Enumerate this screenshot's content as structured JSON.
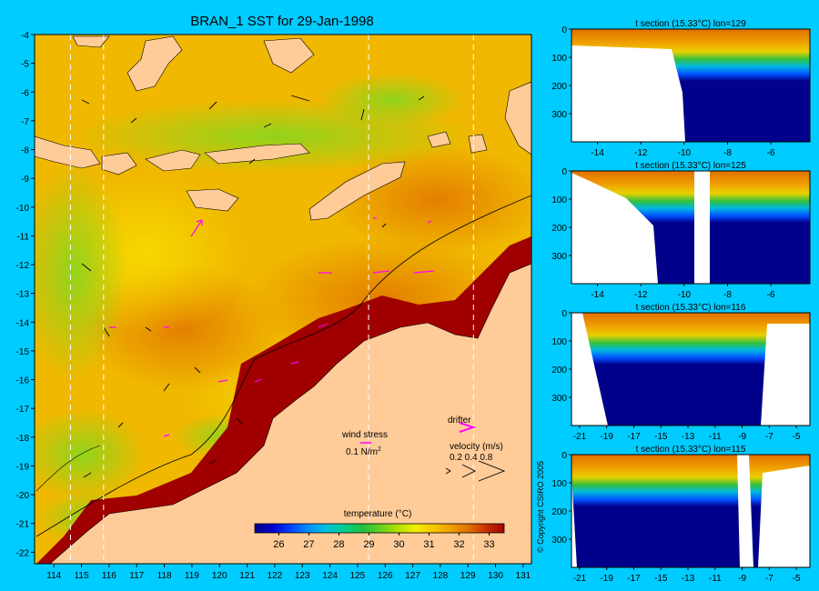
{
  "map": {
    "title": "BRAN_1 SST for 29-Jan-1998",
    "x_ticks": [
      "114",
      "115",
      "116",
      "117",
      "118",
      "119",
      "120",
      "121",
      "122",
      "123",
      "124",
      "125",
      "126",
      "127",
      "128",
      "129",
      "130",
      "131"
    ],
    "y_ticks": [
      "-4",
      "-5",
      "-6",
      "-7",
      "-8",
      "-9",
      "-10",
      "-11",
      "-12",
      "-13",
      "-14",
      "-15",
      "-16",
      "-17",
      "-18",
      "-19",
      "-20",
      "-21",
      "-22"
    ],
    "lon_range": [
      113.3,
      131.3
    ],
    "lat_range": [
      -22.4,
      -4
    ],
    "section_lines_lon": [
      114.6,
      115.8,
      125.4,
      129.2
    ]
  },
  "legend": {
    "wind_stress_label": "wind stress",
    "wind_stress_value": "0.1 N/m",
    "wind_stress_sup": "2",
    "drifter_label": "drifter",
    "velocity_label": "velocity (m/s)",
    "velocity_values": "0.2 0.4 0.8"
  },
  "colorbar": {
    "title": "temperature (°C)",
    "ticks": [
      "26",
      "27",
      "28",
      "29",
      "30",
      "31",
      "32",
      "33"
    ],
    "range": [
      25.2,
      33.5
    ],
    "colors": [
      "#00008b",
      "#0000cd",
      "#0040ff",
      "#0090ff",
      "#00c0e0",
      "#00d090",
      "#20c040",
      "#60d020",
      "#b0e000",
      "#f0f000",
      "#f8c800",
      "#f0a000",
      "#e07000",
      "#c83000",
      "#a00000"
    ]
  },
  "copyright": "© Copyright CSIRO 2005",
  "sections": [
    {
      "title": "t section (15.33°C) lon=129",
      "x_ticks": [
        "-14",
        "-12",
        "-10",
        "-8",
        "-6"
      ],
      "x_range": [
        -15.2,
        -4.2
      ],
      "y_ticks": [
        "0",
        "100",
        "200",
        "300"
      ],
      "y_range": [
        0,
        400
      ]
    },
    {
      "title": "t section (15.33°C) lon=125",
      "x_ticks": [
        "-14",
        "-12",
        "-10",
        "-8",
        "-6"
      ],
      "x_range": [
        -15.2,
        -4.2
      ],
      "y_ticks": [
        "0",
        "100",
        "200",
        "300"
      ],
      "y_range": [
        0,
        400
      ]
    },
    {
      "title": "t section (15.33°C) lon=116",
      "x_ticks": [
        "-21",
        "-19",
        "-17",
        "-15",
        "-13",
        "-11",
        "-9",
        "-7",
        "-5"
      ],
      "x_range": [
        -21.6,
        -4
      ],
      "y_ticks": [
        "0",
        "100",
        "200",
        "300"
      ],
      "y_range": [
        0,
        400
      ]
    },
    {
      "title": "t section (15.33°C) lon=115",
      "x_ticks": [
        "-21",
        "-19",
        "-17",
        "-15",
        "-13",
        "-11",
        "-9",
        "-7",
        "-5"
      ],
      "x_range": [
        -21.6,
        -4
      ],
      "y_ticks": [
        "0",
        "100",
        "200",
        "300"
      ],
      "y_range": [
        0,
        400
      ]
    }
  ]
}
